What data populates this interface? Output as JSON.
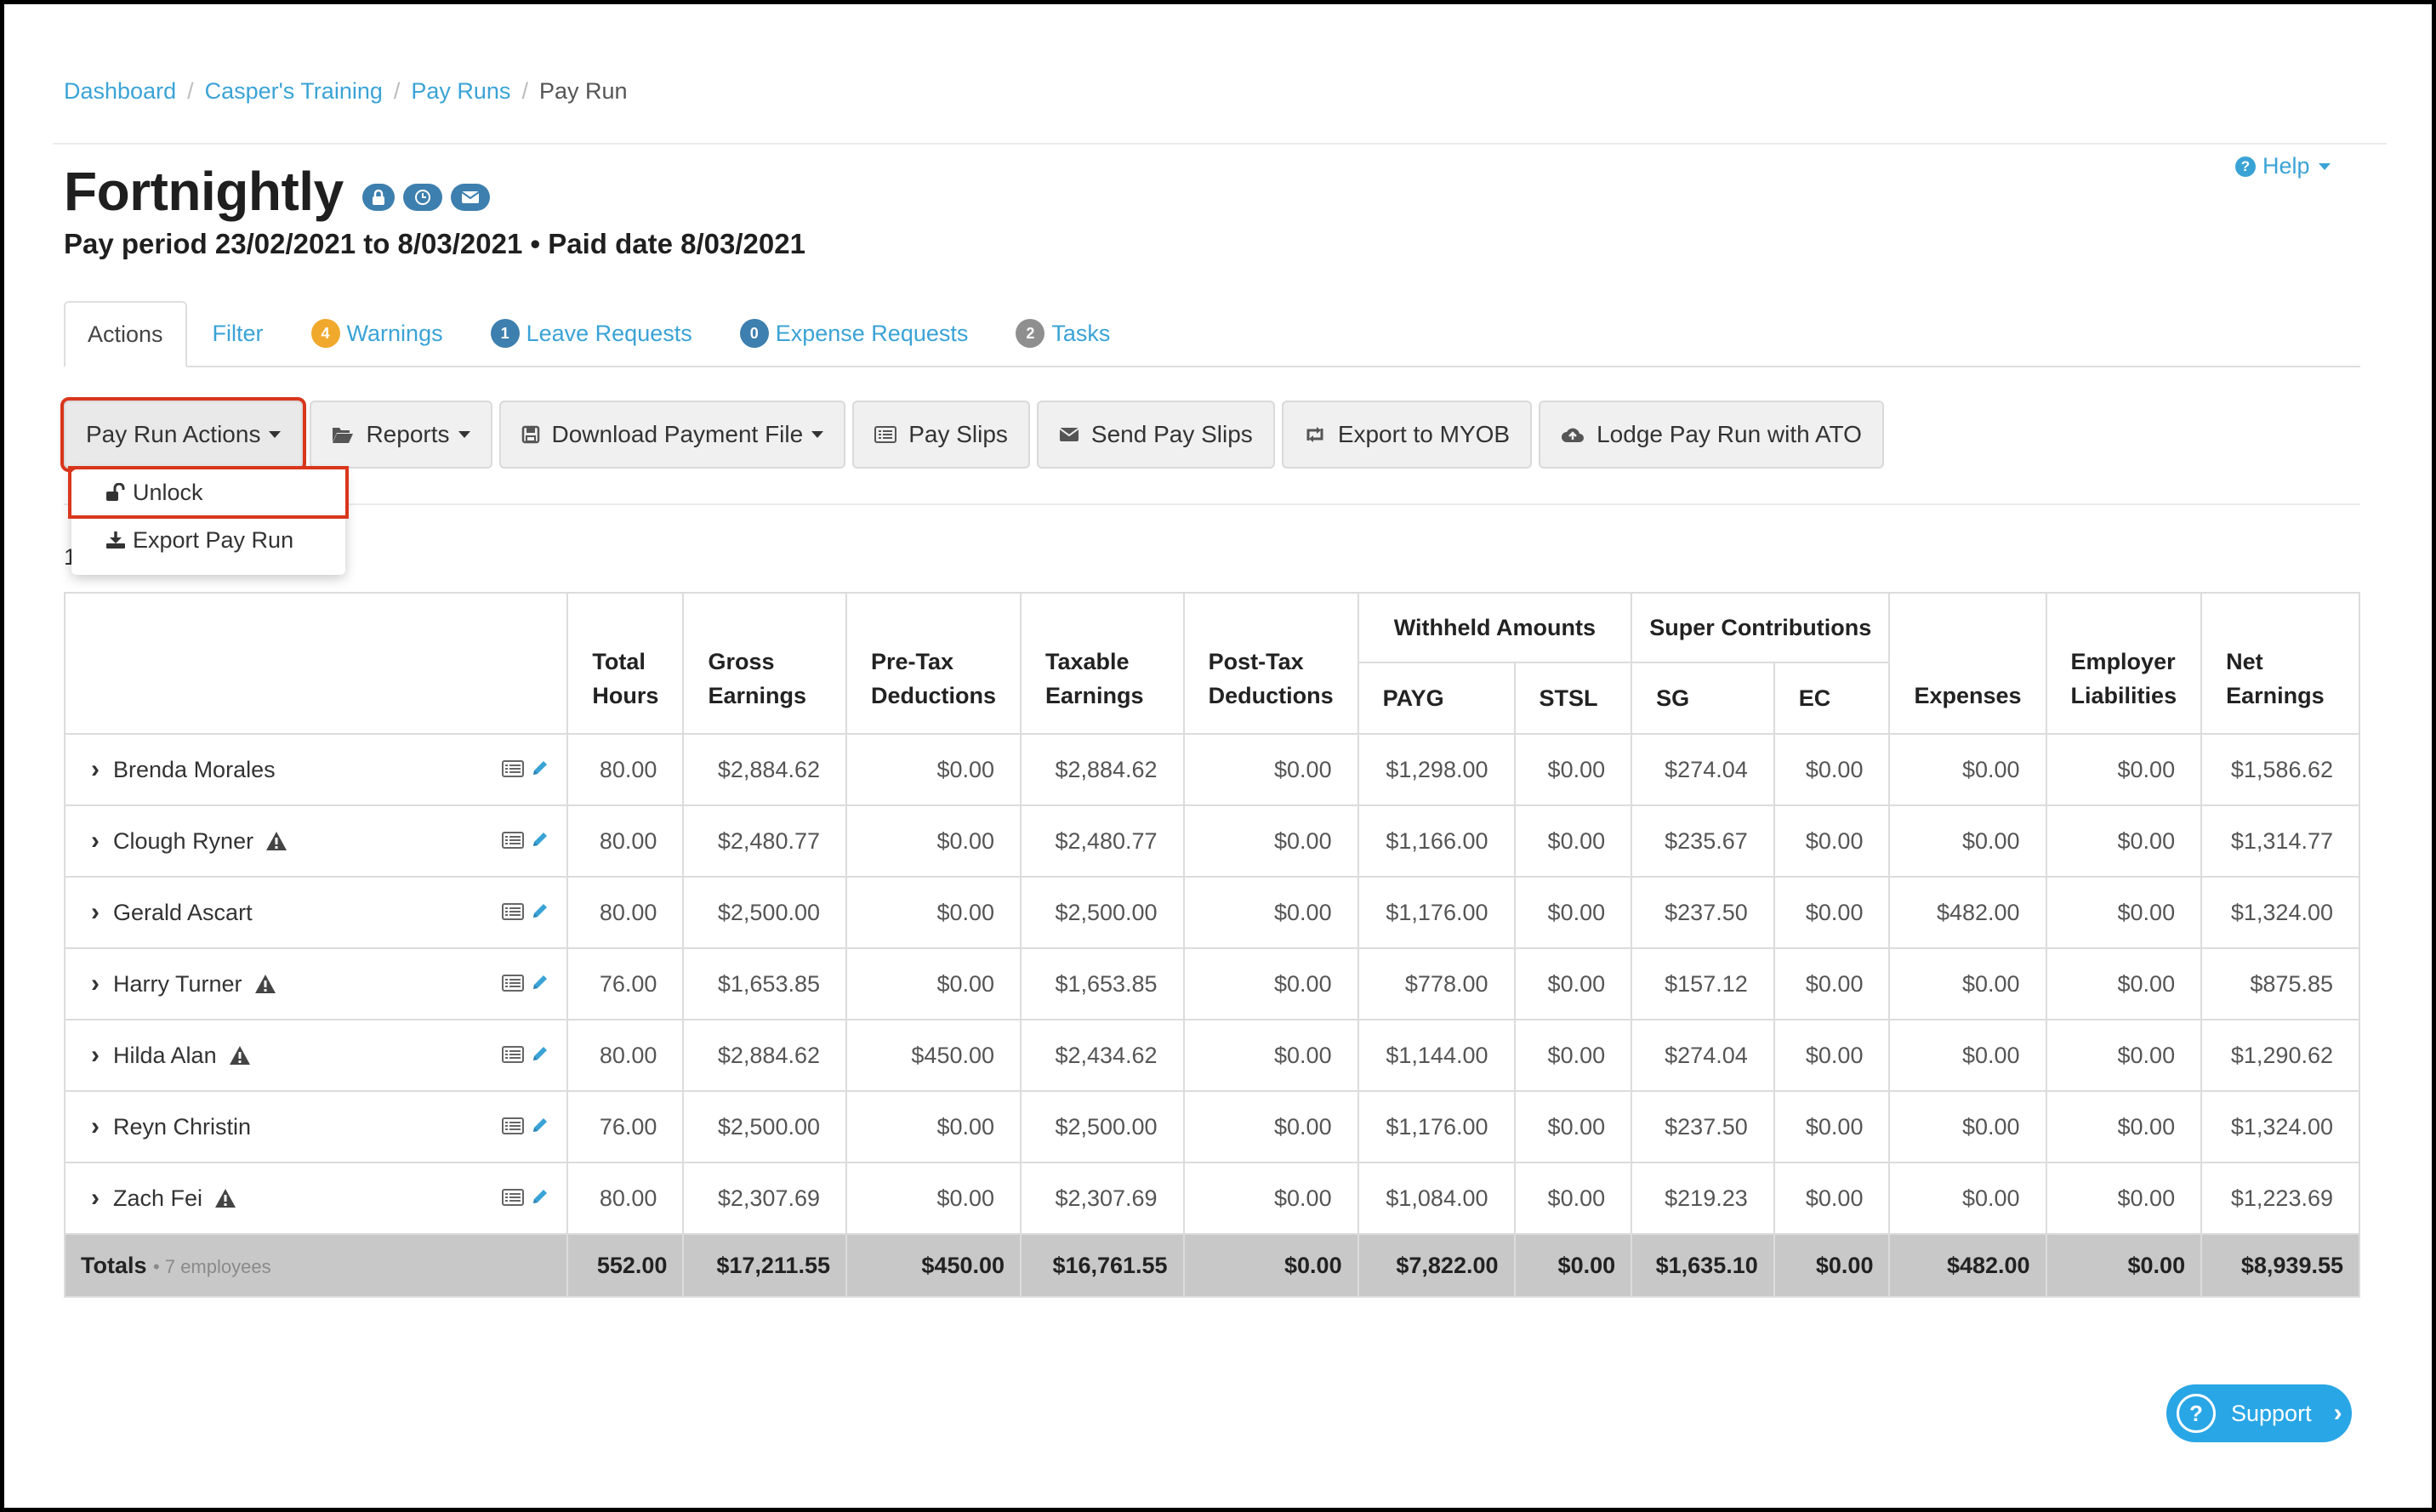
{
  "breadcrumb": {
    "items": [
      "Dashboard",
      "Casper's Training",
      "Pay Runs"
    ],
    "current": "Pay Run"
  },
  "header": {
    "title": "Fortnightly",
    "subtitle": "Pay period 23/02/2021 to 8/03/2021 • Paid date 8/03/2021",
    "help_label": "Help",
    "icons": [
      "lock-icon",
      "clock-icon",
      "envelope-icon"
    ]
  },
  "tabs": [
    {
      "label": "Actions",
      "badge": ""
    },
    {
      "label": "Filter",
      "badge": ""
    },
    {
      "label": "Warnings",
      "badge": "4",
      "badge_color": "#f0a92d"
    },
    {
      "label": "Leave Requests",
      "badge": "1",
      "badge_color": "#3d7fae"
    },
    {
      "label": "Expense Requests",
      "badge": "0",
      "badge_color": "#3d7fae"
    },
    {
      "label": "Tasks",
      "badge": "2",
      "badge_color": "#8f8f8f"
    }
  ],
  "toolbar": {
    "pay_run_actions": "Pay Run Actions",
    "reports": "Reports",
    "download_payment_file": "Download Payment File",
    "pay_slips": "Pay Slips",
    "send_pay_slips": "Send Pay Slips",
    "export_myob": "Export to MYOB",
    "lodge_ato": "Lodge Pay Run with ATO"
  },
  "dropdown": {
    "unlock": "Unlock",
    "export_pay_run": "Export Pay Run"
  },
  "stray_text": "1",
  "table": {
    "groups": {
      "withheld": "Withheld Amounts",
      "super": "Super Contributions"
    },
    "headers": {
      "total_hours": [
        "Total",
        "Hours"
      ],
      "gross": [
        "Gross",
        "Earnings"
      ],
      "pretax": [
        "Pre-Tax",
        "Deductions"
      ],
      "taxable": [
        "Taxable",
        "Earnings"
      ],
      "posttax": [
        "Post-Tax",
        "Deductions"
      ],
      "payg": "PAYG",
      "stsl": "STSL",
      "sg": "SG",
      "ec": "EC",
      "expenses": "Expenses",
      "employer": [
        "Employer",
        "Liabilities"
      ],
      "net": [
        "Net",
        "Earnings"
      ]
    },
    "rows": [
      {
        "name": "Brenda Morales",
        "warning": false,
        "values": [
          "80.00",
          "$2,884.62",
          "$0.00",
          "$2,884.62",
          "$0.00",
          "$1,298.00",
          "$0.00",
          "$274.04",
          "$0.00",
          "$0.00",
          "$0.00",
          "$1,586.62"
        ]
      },
      {
        "name": "Clough Ryner",
        "warning": true,
        "values": [
          "80.00",
          "$2,480.77",
          "$0.00",
          "$2,480.77",
          "$0.00",
          "$1,166.00",
          "$0.00",
          "$235.67",
          "$0.00",
          "$0.00",
          "$0.00",
          "$1,314.77"
        ]
      },
      {
        "name": "Gerald Ascart",
        "warning": false,
        "values": [
          "80.00",
          "$2,500.00",
          "$0.00",
          "$2,500.00",
          "$0.00",
          "$1,176.00",
          "$0.00",
          "$237.50",
          "$0.00",
          "$482.00",
          "$0.00",
          "$1,324.00"
        ]
      },
      {
        "name": "Harry Turner",
        "warning": true,
        "values": [
          "76.00",
          "$1,653.85",
          "$0.00",
          "$1,653.85",
          "$0.00",
          "$778.00",
          "$0.00",
          "$157.12",
          "$0.00",
          "$0.00",
          "$0.00",
          "$875.85"
        ]
      },
      {
        "name": "Hilda Alan",
        "warning": true,
        "values": [
          "80.00",
          "$2,884.62",
          "$450.00",
          "$2,434.62",
          "$0.00",
          "$1,144.00",
          "$0.00",
          "$274.04",
          "$0.00",
          "$0.00",
          "$0.00",
          "$1,290.62"
        ]
      },
      {
        "name": "Reyn Christin",
        "warning": false,
        "values": [
          "76.00",
          "$2,500.00",
          "$0.00",
          "$2,500.00",
          "$0.00",
          "$1,176.00",
          "$0.00",
          "$237.50",
          "$0.00",
          "$0.00",
          "$0.00",
          "$1,324.00"
        ]
      },
      {
        "name": "Zach Fei",
        "warning": true,
        "values": [
          "80.00",
          "$2,307.69",
          "$0.00",
          "$2,307.69",
          "$0.00",
          "$1,084.00",
          "$0.00",
          "$219.23",
          "$0.00",
          "$0.00",
          "$0.00",
          "$1,223.69"
        ]
      }
    ],
    "totals": {
      "label": "Totals",
      "employees": "• 7 employees",
      "values": [
        "552.00",
        "$17,211.55",
        "$450.00",
        "$16,761.55",
        "$0.00",
        "$7,822.00",
        "$0.00",
        "$1,635.10",
        "$0.00",
        "$482.00",
        "$0.00",
        "$8,939.55"
      ]
    }
  },
  "support_label": "Support",
  "colors": {
    "link": "#3aa3d6",
    "highlight": "#d9361c",
    "badge_blue": "#3d7fae",
    "support_bg": "#29a6e6"
  }
}
